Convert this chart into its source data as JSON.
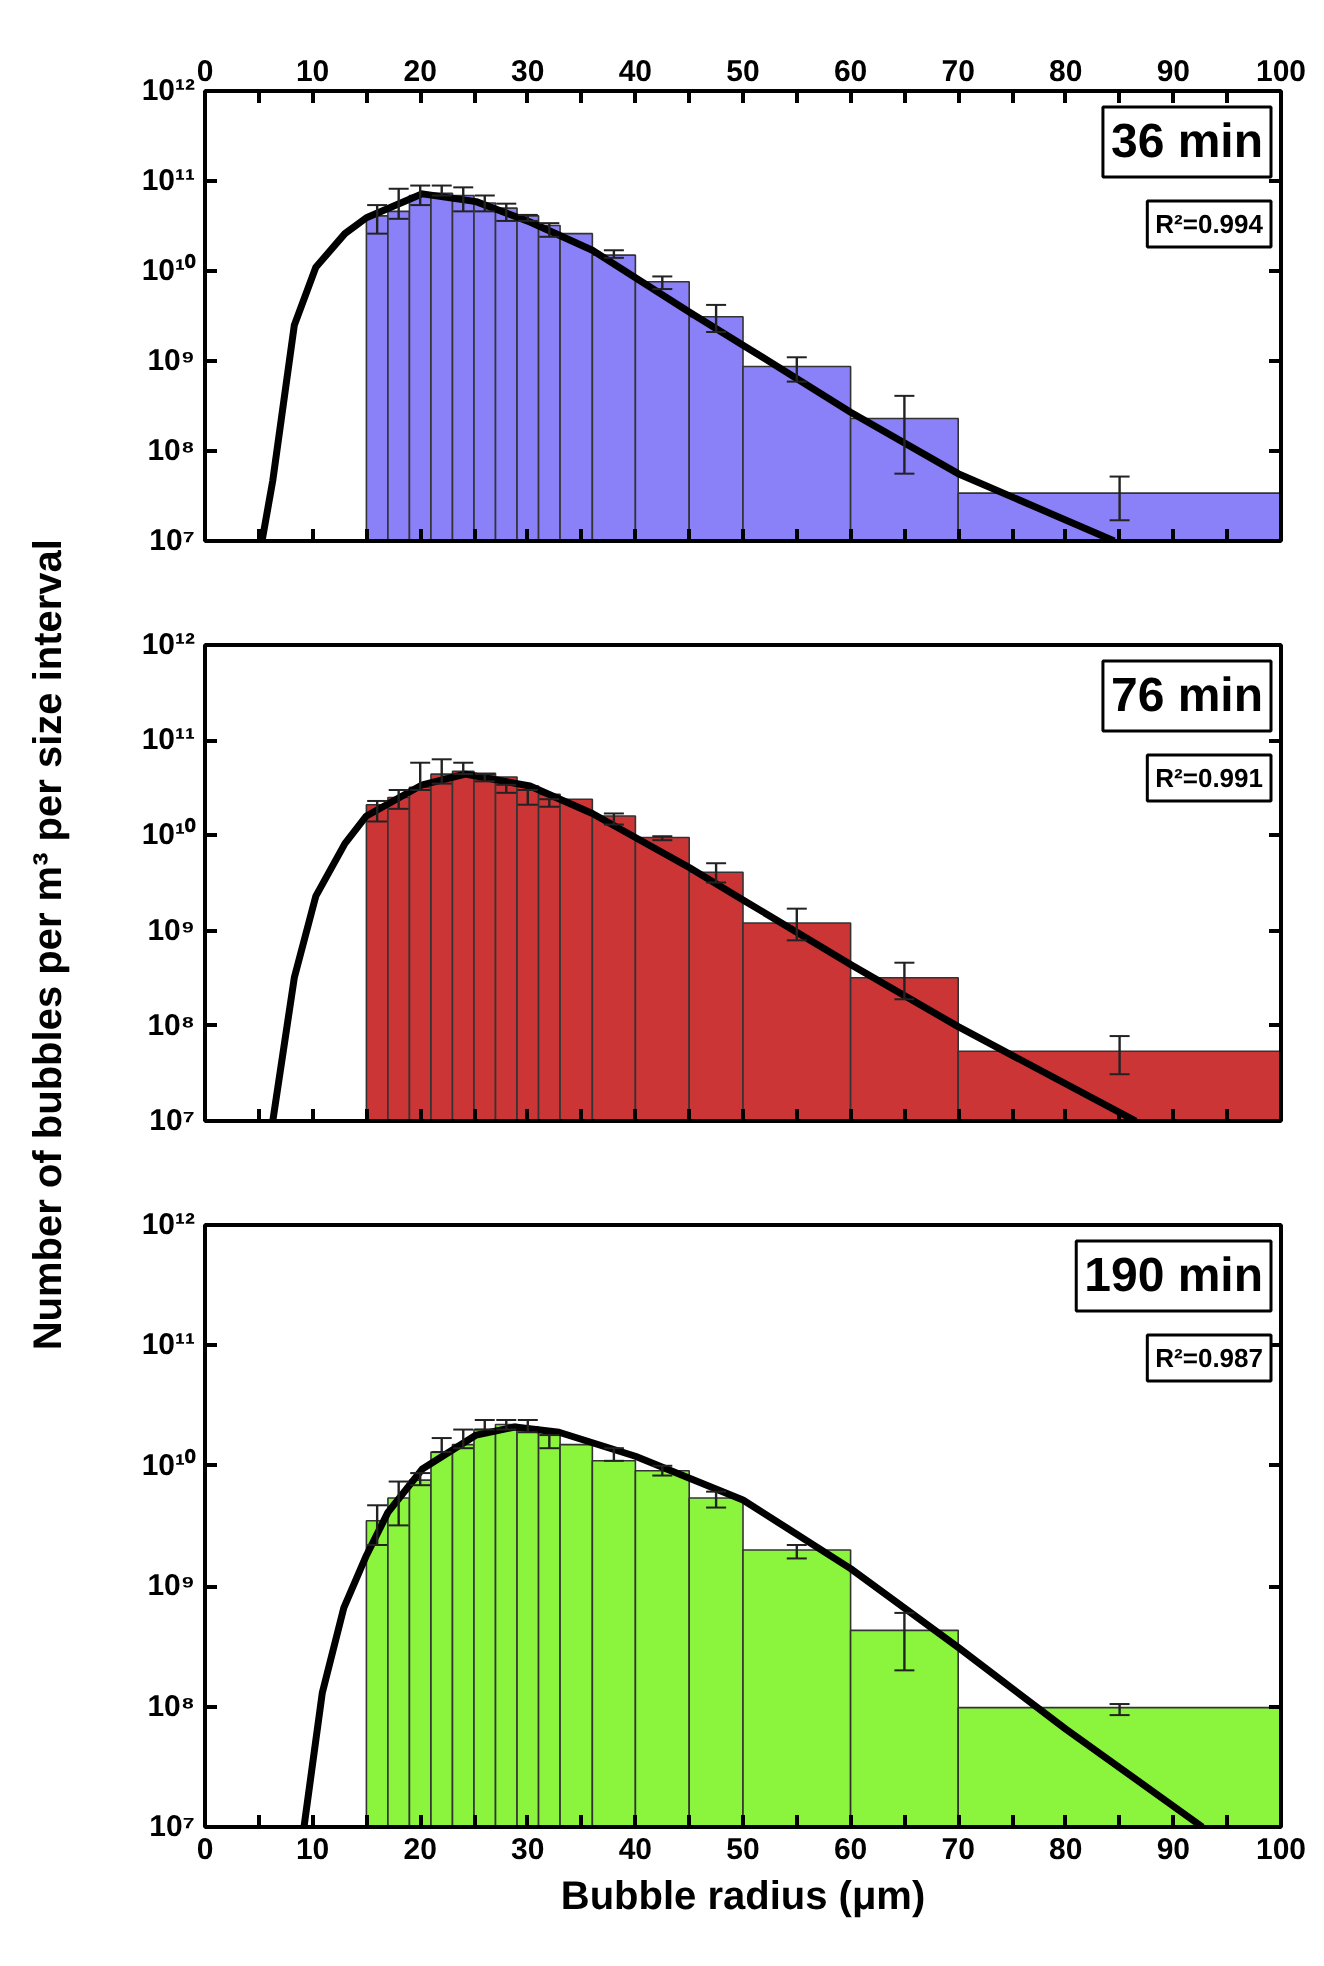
{
  "chart_data": [
    {
      "type": "histogram",
      "bins": [
        15,
        17,
        19,
        21,
        23,
        25,
        27,
        29,
        31,
        33,
        36,
        40,
        45,
        50,
        60,
        70,
        100
      ],
      "color": "#8a80f8",
      "values": [
        41000000000.0,
        46000000000.0,
        69000000000.0,
        73000000000.0,
        69000000000.0,
        57000000000.0,
        50000000000.0,
        41000000000.0,
        32000000000.0,
        26000000000.0,
        15000000000.0,
        7600000000.0,
        3100000000.0,
        870000000.0,
        230000000.0,
        34000000.0
      ],
      "errors": [
        [
          26000000000.0,
          54000000000.0
        ],
        [
          38000000000.0,
          82000000000.0
        ],
        [
          54000000000.0,
          89000000000.0
        ],
        [
          69000000000.0,
          89000000000.0
        ],
        [
          46000000000.0,
          85000000000.0
        ],
        [
          46000000000.0,
          69000000000.0
        ],
        [
          36000000000.0,
          56000000000.0
        ],
        [
          36000000000.0,
          42000000000.0
        ],
        [
          24000000000.0,
          34000000000.0
        ],
        null,
        [
          14000000000.0,
          17000000000.0
        ],
        [
          6300000000.0,
          8700000000.0
        ],
        [
          2100000000.0,
          4200000000.0
        ],
        [
          590000000.0,
          1100000000.0
        ],
        [
          56000000.0,
          410000000.0
        ],
        [
          17000000.0,
          52000000.0
        ]
      ],
      "series": [
        {
          "type": "line",
          "color": "#000000",
          "x": [
            5.3,
            6.3,
            8.3,
            10.3,
            13,
            15,
            20.2,
            25.2,
            30.2,
            36,
            45,
            50,
            60,
            70,
            84.5
          ],
          "values": [
            10000000.0,
            47000000.0,
            2500000000.0,
            11000000000.0,
            26000000000.0,
            39000000000.0,
            72000000000.0,
            59000000000.0,
            35000000000.0,
            17000000000.0,
            3500000000.0,
            1500000000.0,
            270000000.0,
            56000000.0,
            10000000.0
          ]
        }
      ],
      "log": "y",
      "xlim": [
        0,
        100
      ],
      "x2lim": [
        0,
        100
      ],
      "x2ticks": [
        0,
        {
          "value": 5,
          "label": null
        },
        10,
        {
          "value": 15,
          "label": null
        },
        20,
        {
          "value": 25,
          "label": null
        },
        30,
        {
          "value": 35,
          "label": null
        },
        40,
        {
          "value": 45,
          "label": null
        },
        50,
        {
          "value": 55,
          "label": null
        },
        60,
        {
          "value": 65,
          "label": null
        },
        70,
        {
          "value": 75,
          "label": null
        },
        80,
        {
          "value": 85,
          "label": null
        },
        90,
        {
          "value": 95,
          "label": null
        },
        100
      ],
      "ylim": [
        10000000.0,
        1000000000000.0
      ],
      "yticks": [
        {
          "value": 10000000.0,
          "label": "10⁷"
        },
        {
          "value": 100000000.0,
          "label": "10⁸"
        },
        {
          "value": 1000000000.0,
          "label": "10⁹"
        },
        {
          "value": 10000000000.0,
          "label": "10¹⁰"
        },
        {
          "value": 100000000000.0,
          "label": "10¹¹"
        },
        {
          "value": 1000000000000.0,
          "label": "10¹²"
        }
      ],
      "tick_labels": "y",
      "annotations": [
        "36 min",
        "R²=0.994"
      ]
    },
    {
      "type": "histogram",
      "bins": [
        15,
        17,
        19,
        21,
        23,
        25,
        27,
        29,
        31,
        33,
        36,
        40,
        45,
        50,
        60,
        70,
        100
      ],
      "color": "#cc3535",
      "values": [
        21000000000.0,
        25000000000.0,
        32000000000.0,
        44000000000.0,
        47000000000.0,
        45000000000.0,
        41000000000.0,
        33000000000.0,
        27000000000.0,
        24000000000.0,
        16000000000.0,
        9500000000.0,
        4100000000.0,
        1200000000.0,
        320000000.0,
        54000000.0
      ],
      "errors": [
        [
          14000000000.0,
          23000000000.0
        ],
        [
          19000000000.0,
          30000000000.0
        ],
        [
          30000000000.0,
          58000000000.0
        ],
        [
          35000000000.0,
          63000000000.0
        ],
        [
          44000000000.0,
          58000000000.0
        ],
        [
          37000000000.0,
          44000000000.0
        ],
        [
          28000000000.0,
          34000000000.0
        ],
        [
          21000000000.0,
          30000000000.0
        ],
        [
          20000000000.0,
          24000000000.0
        ],
        null,
        [
          13000000000.0,
          17000000000.0
        ],
        [
          8900000000.0,
          9800000000.0
        ],
        [
          3200000000.0,
          5100000000.0
        ],
        [
          790000000.0,
          1700000000.0
        ],
        [
          190000000.0,
          460000000.0
        ],
        [
          31000000.0,
          78000000.0
        ]
      ],
      "series": [
        {
          "type": "line",
          "color": "#000000",
          "x": [
            6.3,
            8.3,
            10.3,
            13,
            15,
            20.2,
            24.2,
            30.2,
            36,
            45,
            50,
            60,
            70,
            86.5
          ],
          "values": [
            10000000.0,
            320000000.0,
            2300000000.0,
            8200000000.0,
            16000000000.0,
            34000000000.0,
            44000000000.0,
            33000000000.0,
            17000000000.0,
            4600000000.0,
            2100000000.0,
            440000000.0,
            98000000.0,
            10000000.0
          ]
        }
      ],
      "log": "y",
      "xlim": [
        0,
        100
      ],
      "xticks": [
        {
          "value": 0,
          "label": null
        },
        {
          "value": 5,
          "label": null
        },
        {
          "value": 10,
          "label": null
        },
        {
          "value": 15,
          "label": null
        },
        {
          "value": 20,
          "label": null
        },
        {
          "value": 25,
          "label": null
        },
        {
          "value": 30,
          "label": null
        },
        {
          "value": 35,
          "label": null
        },
        {
          "value": 40,
          "label": null
        },
        {
          "value": 45,
          "label": null
        },
        {
          "value": 50,
          "label": null
        },
        {
          "value": 55,
          "label": null
        },
        {
          "value": 60,
          "label": null
        },
        {
          "value": 65,
          "label": null
        },
        {
          "value": 70,
          "label": null
        },
        {
          "value": 75,
          "label": null
        },
        {
          "value": 80,
          "label": null
        },
        {
          "value": 85,
          "label": null
        },
        {
          "value": 90,
          "label": null
        },
        {
          "value": 95,
          "label": null
        },
        {
          "value": 100,
          "label": null
        }
      ],
      "ylim": [
        10000000.0,
        1000000000000.0
      ],
      "yticks": [
        {
          "value": 10000000.0,
          "label": "10⁷"
        },
        {
          "value": 100000000.0,
          "label": "10⁸"
        },
        {
          "value": 1000000000.0,
          "label": "10⁹"
        },
        {
          "value": 10000000000.0,
          "label": "10¹⁰"
        },
        {
          "value": 100000000000.0,
          "label": "10¹¹"
        },
        {
          "value": 1000000000000.0,
          "label": "10¹²"
        }
      ],
      "tick_labels": "y",
      "ylabel": "Number of bubbles per m³ per size interval",
      "annotations": [
        "76 min",
        "R²=0.991"
      ]
    },
    {
      "type": "histogram",
      "bins": [
        15,
        17,
        19,
        21,
        23,
        25,
        27,
        29,
        31,
        33,
        36,
        40,
        45,
        50,
        60,
        70,
        100
      ],
      "color": "#8af53c",
      "values": [
        3500000000.0,
        5400000000.0,
        7600000000.0,
        13000000000.0,
        15000000000.0,
        20000000000.0,
        22000000000.0,
        21000000000.0,
        19000000000.0,
        15000000000.0,
        11000000000.0,
        9100000000.0,
        5400000000.0,
        2000000000.0,
        430000000.0,
        98000000.0
      ],
      "errors": [
        [
          2200000000.0,
          4700000000.0
        ],
        [
          3200000000.0,
          7400000000.0
        ],
        [
          6900000000.0,
          8700000000.0
        ],
        [
          13000000000.0,
          17000000000.0
        ],
        [
          14000000000.0,
          20000000000.0
        ],
        [
          20000000000.0,
          24000000000.0
        ],
        [
          20000000000.0,
          24000000000.0
        ],
        [
          19000000000.0,
          24000000000.0
        ],
        [
          14000000000.0,
          18000000000.0
        ],
        null,
        [
          11000000000.0,
          14000000000.0
        ],
        [
          8300000000.0,
          10000000000.0
        ],
        [
          4500000000.0,
          6100000000.0
        ],
        [
          1700000000.0,
          2200000000.0
        ],
        [
          200000000.0,
          600000000.0
        ],
        [
          85000000.0,
          105000000.0
        ]
      ],
      "series": [
        {
          "type": "line",
          "color": "#000000",
          "x": [
            9.2,
            10.9,
            12.9,
            15,
            17,
            20.2,
            25.2,
            28.8,
            32.9,
            40,
            50,
            60,
            70,
            80,
            92.7
          ],
          "values": [
            10000000.0,
            130000000.0,
            660000000.0,
            1800000000.0,
            4100000000.0,
            9400000000.0,
            18000000000.0,
            21000000000.0,
            19000000000.0,
            12000000000.0,
            5200000000.0,
            1400000000.0,
            310000000.0,
            65000000.0,
            10000000.0
          ]
        }
      ],
      "log": "y",
      "xlim": [
        0,
        100
      ],
      "xticks": [
        0,
        {
          "value": 5,
          "label": null
        },
        10,
        {
          "value": 15,
          "label": null
        },
        20,
        {
          "value": 25,
          "label": null
        },
        30,
        {
          "value": 35,
          "label": null
        },
        40,
        {
          "value": 45,
          "label": null
        },
        50,
        {
          "value": 55,
          "label": null
        },
        60,
        {
          "value": 65,
          "label": null
        },
        70,
        {
          "value": 75,
          "label": null
        },
        80,
        {
          "value": 85,
          "label": null
        },
        90,
        {
          "value": 95,
          "label": null
        },
        100
      ],
      "ylim": [
        10000000.0,
        1000000000000.0
      ],
      "yticks": [
        {
          "value": 10000000.0,
          "label": "10⁷"
        },
        {
          "value": 100000000.0,
          "label": "10⁸"
        },
        {
          "value": 1000000000.0,
          "label": "10⁹"
        },
        {
          "value": 10000000000.0,
          "label": "10¹⁰"
        },
        {
          "value": 100000000000.0,
          "label": "10¹¹"
        },
        {
          "value": 1000000000000.0,
          "label": "10¹²"
        }
      ],
      "xlabel": "Bubble radius (μm)",
      "annotations": [
        "190 min",
        "R²=0.987"
      ]
    }
  ]
}
